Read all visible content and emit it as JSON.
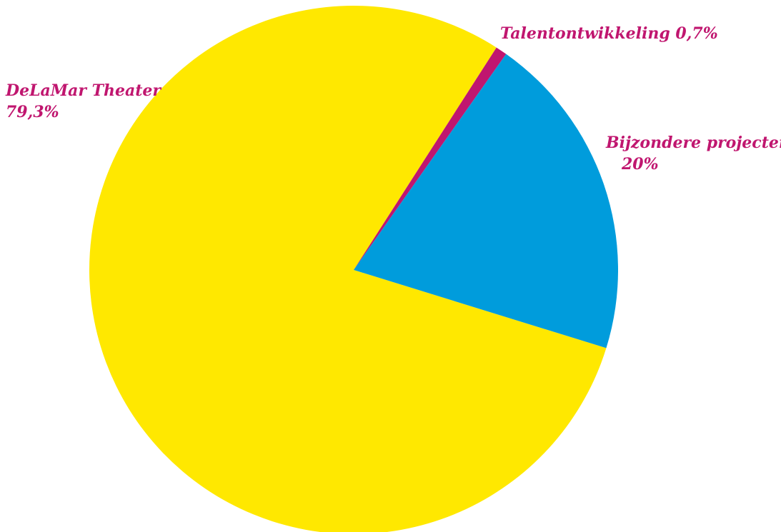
{
  "chart_data": {
    "type": "pie",
    "title": "",
    "label_color": "#c0166f",
    "slices": [
      {
        "label": "DeLaMar Theater",
        "value": 79.3,
        "value_label": "79,3%",
        "color": "#ffe800"
      },
      {
        "label": "Talentontwikkeling",
        "value": 0.7,
        "value_label": "0,7%",
        "color": "#c0166f"
      },
      {
        "label": "Bijzondere projecten",
        "value": 20,
        "value_label": "20%",
        "color": "#009cdc"
      }
    ]
  }
}
